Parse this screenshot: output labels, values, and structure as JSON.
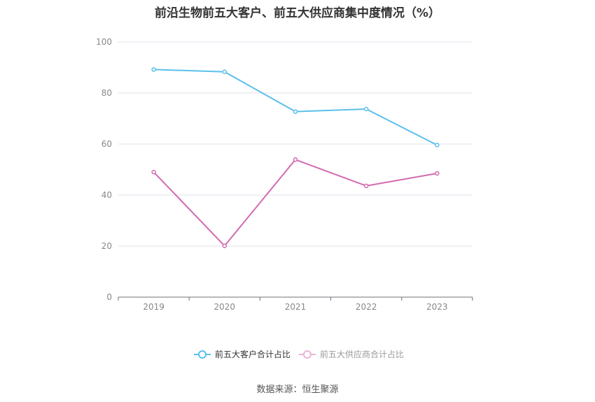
{
  "chart_data": {
    "type": "line",
    "title": "前沿生物前五大客户、前五大供应商集中度情况（%）",
    "categories": [
      "2019",
      "2020",
      "2021",
      "2022",
      "2023"
    ],
    "series": [
      {
        "name": "前五大客户合计占比",
        "values": [
          89.2,
          88.3,
          72.7,
          73.7,
          59.6
        ],
        "color": "#5bc0eb",
        "legend_active": true
      },
      {
        "name": "前五大供应商合计占比",
        "values": [
          49.0,
          20.1,
          53.9,
          43.6,
          48.5
        ],
        "color": "#d36bb0",
        "legend_active": false
      }
    ],
    "ylim": [
      0,
      100
    ],
    "yticks": [
      0,
      20,
      40,
      60,
      80,
      100
    ],
    "grid": true,
    "legend": "bottom"
  },
  "source": "数据来源：恒生聚源"
}
